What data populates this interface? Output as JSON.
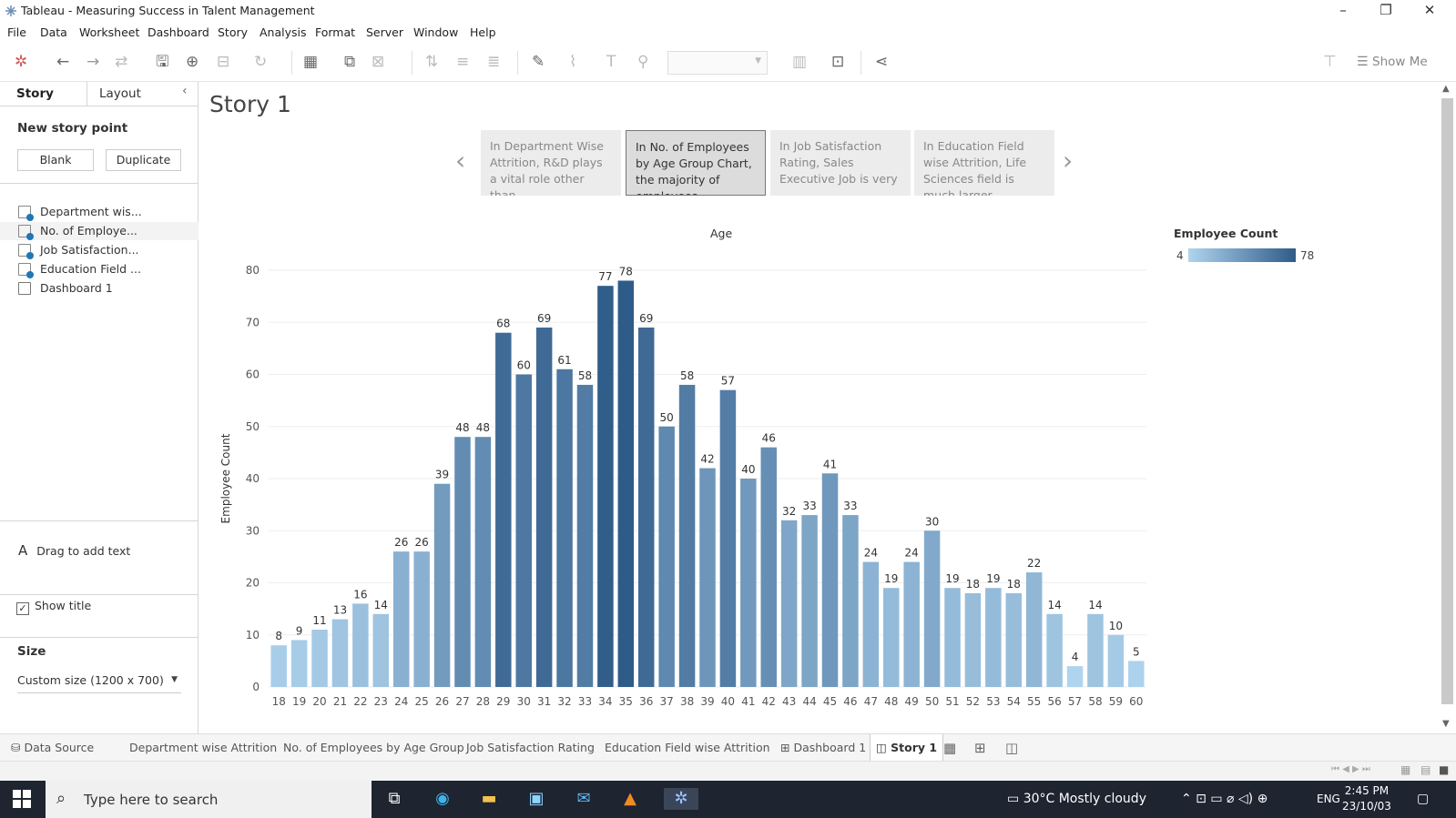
{
  "window": {
    "title": "Tableau - Measuring Success in Talent Management"
  },
  "menu": [
    "File",
    "Data",
    "Worksheet",
    "Dashboard",
    "Story",
    "Analysis",
    "Format",
    "Server",
    "Window",
    "Help"
  ],
  "toolbar": {
    "show_me": "Show Me"
  },
  "left_panel": {
    "tabs": [
      "Story",
      "Layout"
    ],
    "new_story_point": "New story point",
    "blank": "Blank",
    "duplicate": "Duplicate",
    "sheets": [
      "Department wis...",
      "No. of Employe...",
      "Job Satisfaction...",
      "Education Field ...",
      "Dashboard 1"
    ],
    "drag_text": "Drag to add text",
    "show_title": "Show title",
    "size_label": "Size",
    "size_value": "Custom size (1200 x 700)"
  },
  "story": {
    "title": "Story 1",
    "points": [
      "In Department Wise Attrition, R&D plays a vital role other than",
      "In No. of Employees by Age Group Chart, the majority of employees",
      "In Job Satisfaction Rating, Sales Executive Job is very",
      "In Education Field wise Attrition, Life Sciences field is much larger"
    ]
  },
  "chart_data": {
    "type": "bar",
    "title": "Age",
    "ylabel": "Employee Count",
    "ylim": [
      0,
      80
    ],
    "yticks": [
      0,
      10,
      20,
      30,
      40,
      50,
      60,
      70,
      80
    ],
    "categories": [
      "18",
      "19",
      "20",
      "21",
      "22",
      "23",
      "24",
      "25",
      "26",
      "27",
      "28",
      "29",
      "30",
      "31",
      "32",
      "33",
      "34",
      "35",
      "36",
      "37",
      "38",
      "39",
      "40",
      "41",
      "42",
      "43",
      "44",
      "45",
      "46",
      "47",
      "48",
      "49",
      "50",
      "51",
      "52",
      "53",
      "54",
      "55",
      "56",
      "57",
      "58",
      "59",
      "60"
    ],
    "values": [
      8,
      9,
      11,
      13,
      16,
      14,
      26,
      26,
      39,
      48,
      48,
      68,
      60,
      69,
      61,
      58,
      77,
      78,
      69,
      50,
      58,
      42,
      57,
      40,
      46,
      32,
      33,
      41,
      33,
      24,
      19,
      24,
      30,
      19,
      18,
      19,
      18,
      22,
      14,
      4,
      14,
      10,
      5
    ],
    "legend": {
      "title": "Employee Count",
      "min": "4",
      "max": "78",
      "color_low": "#afd4ee",
      "color_high": "#2f5b89"
    }
  },
  "bottom_tabs": [
    "Data Source",
    "Department wise Attrition",
    "No. of Employees by Age Group",
    "Job Satisfaction Rating",
    "Education Field wise Attrition",
    "Dashboard 1",
    "Story 1"
  ],
  "taskbar": {
    "search_placeholder": "Type here to search",
    "weather": "30°C  Mostly cloudy",
    "lang": "ENG",
    "time": "2:45 PM",
    "date": "23/10/03"
  }
}
